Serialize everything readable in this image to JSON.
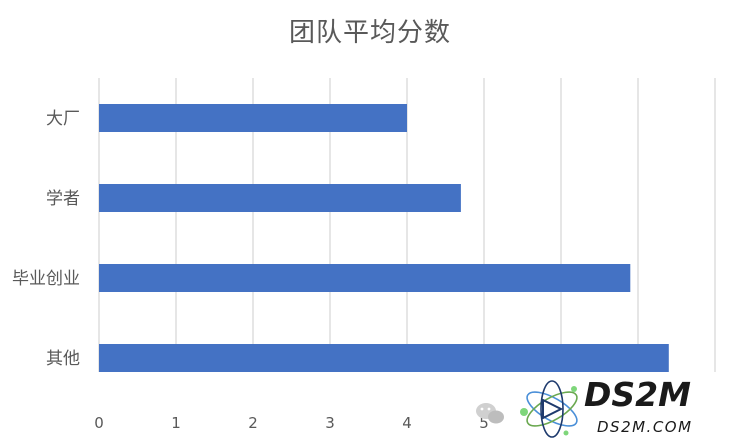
{
  "chart_data": {
    "type": "bar",
    "orientation": "horizontal",
    "title": "团队平均分数",
    "categories": [
      "大厂",
      "学者",
      "毕业创业",
      "其他"
    ],
    "values": [
      4.0,
      4.7,
      6.9,
      7.4
    ],
    "xlim": [
      0,
      8
    ],
    "xticks": [
      0,
      1,
      2,
      3,
      4,
      5
    ],
    "grid": true,
    "legend": "none",
    "bar_color": "#4472C4"
  },
  "watermark": {
    "brand": "DS2M",
    "url": "DS2M.COM"
  }
}
